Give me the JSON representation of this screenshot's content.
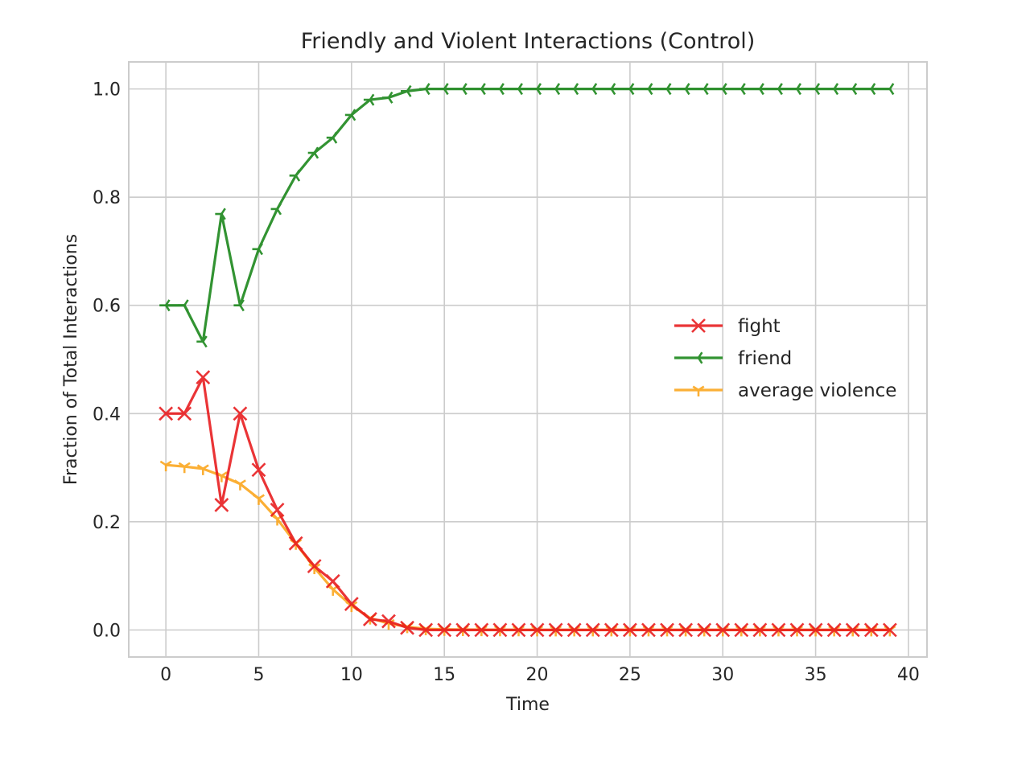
{
  "chart_data": {
    "type": "line",
    "title": "Friendly and Violent Interactions (Control)",
    "xlabel": "Time",
    "ylabel": "Fraction of Total Interactions",
    "xlim": [
      -2,
      41
    ],
    "ylim": [
      -0.05,
      1.05
    ],
    "xticks": [
      "0",
      "5",
      "10",
      "15",
      "20",
      "25",
      "30",
      "35",
      "40"
    ],
    "yticks": [
      "0.0",
      "0.2",
      "0.4",
      "0.6",
      "0.8",
      "1.0"
    ],
    "grid": true,
    "legend_position": "center-right",
    "x": [
      0,
      1,
      2,
      3,
      4,
      5,
      6,
      7,
      8,
      9,
      10,
      11,
      12,
      13,
      14,
      15,
      16,
      17,
      18,
      19,
      20,
      21,
      22,
      23,
      24,
      25,
      26,
      27,
      28,
      29,
      30,
      31,
      32,
      33,
      34,
      35,
      36,
      37,
      38,
      39
    ],
    "series": [
      {
        "name": "fight",
        "color": "#e8191b",
        "marker": "x",
        "values": [
          0.4,
          0.4,
          0.467,
          0.231,
          0.4,
          0.296,
          0.222,
          0.16,
          0.118,
          0.09,
          0.048,
          0.02,
          0.016,
          0.004,
          0,
          0,
          0,
          0,
          0,
          0,
          0,
          0,
          0,
          0,
          0,
          0,
          0,
          0,
          0,
          0,
          0,
          0,
          0,
          0,
          0,
          0,
          0,
          0,
          0,
          0
        ]
      },
      {
        "name": "friend",
        "color": "#168516",
        "marker": "tri_left",
        "values": [
          0.6,
          0.6,
          0.533,
          0.769,
          0.6,
          0.704,
          0.778,
          0.84,
          0.882,
          0.91,
          0.952,
          0.98,
          0.984,
          0.996,
          1,
          1,
          1,
          1,
          1,
          1,
          1,
          1,
          1,
          1,
          1,
          1,
          1,
          1,
          1,
          1,
          1,
          1,
          1,
          1,
          1,
          1,
          1,
          1,
          1,
          1
        ]
      },
      {
        "name": "average violence",
        "color": "#fba51a",
        "marker": "tri_down",
        "values": [
          0.305,
          0.302,
          0.298,
          0.285,
          0.27,
          0.243,
          0.205,
          0.16,
          0.115,
          0.075,
          0.045,
          0.022,
          0.012,
          0.006,
          0.002,
          0.001,
          0.0005,
          0.0003,
          0.0002,
          0.0001,
          0,
          0,
          0,
          0,
          0,
          0,
          0,
          0,
          0,
          0,
          0,
          0,
          0,
          0,
          0,
          0,
          0,
          0,
          0,
          0
        ]
      }
    ]
  }
}
